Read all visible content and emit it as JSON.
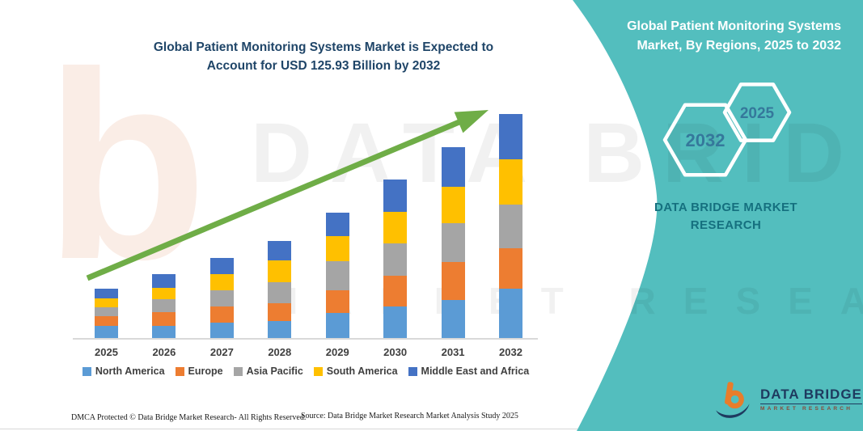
{
  "header": {
    "main_title_line1": "Global Patient Monitoring Systems Market is Expected to",
    "main_title_line2": "Account for USD 125.93 Billion by 2032",
    "panel_title_line1": "Global Patient Monitoring Systems",
    "panel_title_line2": "Market, By Regions, 2025 to 2032"
  },
  "side_panel": {
    "hexagon_front_label": "2032",
    "hexagon_back_label": "2025",
    "brand_line1": "DATA BRIDGE MARKET",
    "brand_line2": "RESEARCH"
  },
  "watermark": {
    "letter": "b",
    "line1": "DATA BRIDGE",
    "line2": "MARKET RESEARCH"
  },
  "chart_data": {
    "type": "bar",
    "stacked": true,
    "title": "Global Patient Monitoring Systems Market, By Regions, 2025 to 2032",
    "unit": "USD Billion",
    "categories": [
      "2025",
      "2026",
      "2027",
      "2028",
      "2029",
      "2030",
      "2031",
      "2032"
    ],
    "series": [
      {
        "name": "North America",
        "color": "#5B9BD5",
        "values": [
          6.8,
          7.0,
          8.8,
          9.5,
          14.0,
          17.7,
          21.5,
          27.8
        ]
      },
      {
        "name": "Europe",
        "color": "#ED7D31",
        "values": [
          5.6,
          7.6,
          9.1,
          10.1,
          12.9,
          17.4,
          21.2,
          22.5
        ]
      },
      {
        "name": "Asia Pacific",
        "color": "#A5A5A5",
        "values": [
          5.0,
          7.1,
          9.1,
          11.8,
          16.4,
          18.2,
          21.7,
          24.9
        ]
      },
      {
        "name": "South America",
        "color": "#FFC000",
        "values": [
          4.9,
          6.7,
          9.1,
          12.1,
          14.0,
          17.7,
          20.8,
          25.2
        ]
      },
      {
        "name": "Middle East and Africa",
        "color": "#4472C4",
        "values": [
          5.3,
          7.3,
          8.8,
          10.9,
          13.3,
          18.2,
          22.3,
          25.5
        ]
      }
    ],
    "totals_estimated": [
      27.6,
      35.7,
      44.9,
      54.4,
      70.6,
      89.2,
      107.5,
      125.93
    ],
    "stated_value_2032": 125.93,
    "values_estimated_from_pixels": true,
    "xlabel": "",
    "ylabel": "",
    "ylim": [
      0,
      130
    ],
    "grid": false,
    "legend_position": "bottom",
    "trend_arrow": {
      "present": true,
      "color": "#6FAD47"
    }
  },
  "footer": {
    "dmca": "DMCA Protected © Data Bridge Market Research-  All Rights Reserved.",
    "source": "Source: Data Bridge Market Research  Market Analysis Study 2025"
  },
  "logo": {
    "name": "DATA BRIDGE",
    "subtitle": "MARKET RESEARCH"
  },
  "colors": {
    "teal_panel": "#53BEBE",
    "main_title": "#1F4568",
    "panel_text": "#FFFFFF",
    "hexagon_text": "#35789B",
    "brand_text": "#15707F",
    "axis_line": "#D9D9D9",
    "axis_label": "#3F3F3F",
    "arrow_green": "#6FAD47",
    "logo_navy": "#1E3A5F",
    "logo_orange": "#E87D2B"
  }
}
